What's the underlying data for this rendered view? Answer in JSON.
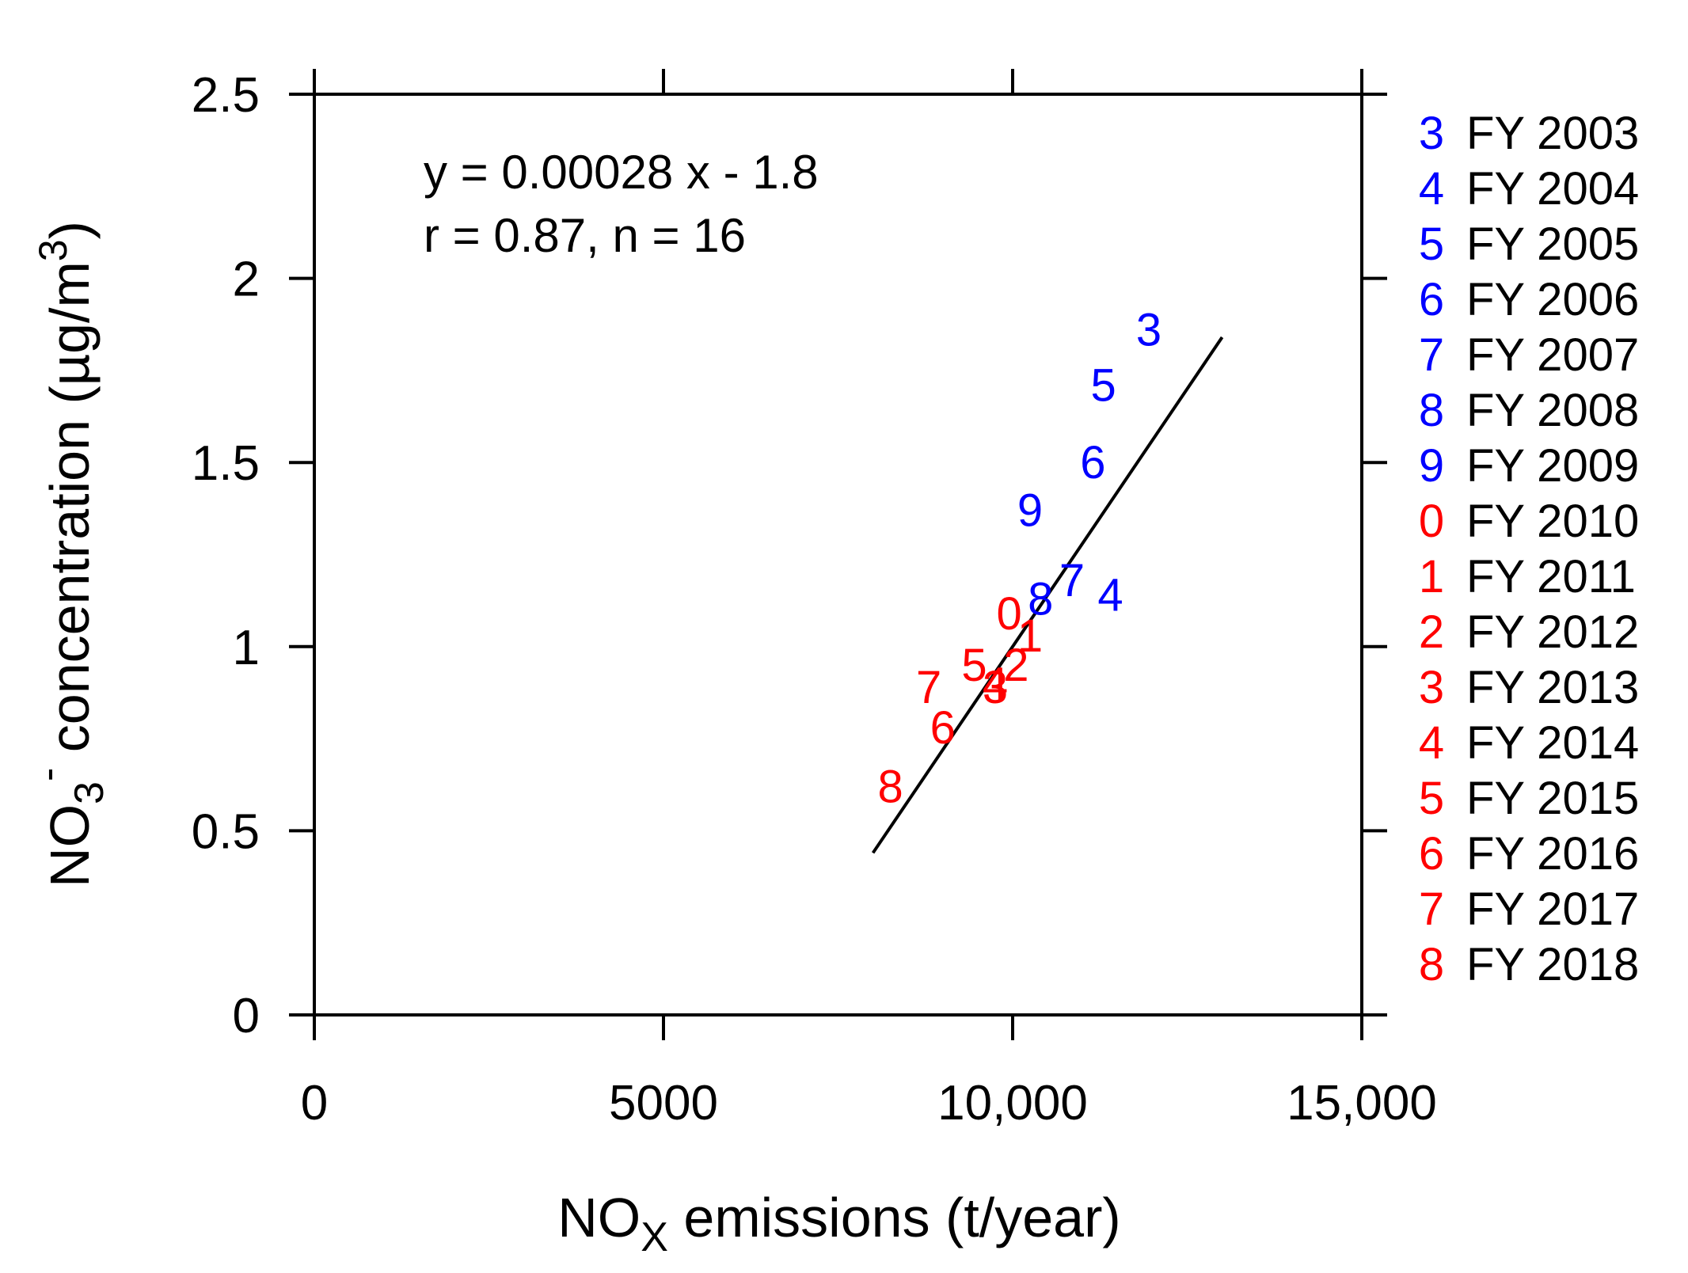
{
  "chart_data": {
    "type": "scatter",
    "xlabel": {
      "main": "NO",
      "sub": "X",
      "rest": " emissions (t/year)"
    },
    "ylabel": {
      "main": "NO",
      "sub": "3",
      "sup": "-",
      "rest": " concentration (µg/m",
      "sup2": "3",
      "end": ")"
    },
    "xlim": [
      0,
      15000
    ],
    "ylim": [
      0,
      2.5
    ],
    "xticks": [
      {
        "value": 0,
        "label": "0"
      },
      {
        "value": 5000,
        "label": "5000"
      },
      {
        "value": 10000,
        "label": "10,000"
      },
      {
        "value": 15000,
        "label": "15,000"
      }
    ],
    "yticks": [
      {
        "value": 0,
        "label": "0"
      },
      {
        "value": 0.5,
        "label": "0.5"
      },
      {
        "value": 1,
        "label": "1"
      },
      {
        "value": 1.5,
        "label": "1.5"
      },
      {
        "value": 2,
        "label": "2"
      },
      {
        "value": 2.5,
        "label": "2.5"
      }
    ],
    "annotations": [
      "y = 0.00028 x - 1.8",
      "r = 0.87, n = 16"
    ],
    "regression": {
      "slope": 0.00028,
      "intercept": -1.8,
      "x_start": 8000,
      "x_end": 13000
    },
    "colors": {
      "early": "#0000ff",
      "late": "#ff0000"
    },
    "points": [
      {
        "code": "3",
        "year": "FY 2003",
        "x": 11950,
        "y": 1.86,
        "color": "#0000ff"
      },
      {
        "code": "4",
        "year": "FY 2004",
        "x": 11400,
        "y": 1.14,
        "color": "#0000ff"
      },
      {
        "code": "5",
        "year": "FY 2005",
        "x": 11300,
        "y": 1.71,
        "color": "#0000ff"
      },
      {
        "code": "6",
        "year": "FY 2006",
        "x": 11150,
        "y": 1.5,
        "color": "#0000ff"
      },
      {
        "code": "7",
        "year": "FY 2007",
        "x": 10850,
        "y": 1.18,
        "color": "#0000ff"
      },
      {
        "code": "8",
        "year": "FY 2008",
        "x": 10400,
        "y": 1.13,
        "color": "#0000ff"
      },
      {
        "code": "9",
        "year": "FY 2009",
        "x": 10250,
        "y": 1.37,
        "color": "#0000ff"
      },
      {
        "code": "0",
        "year": "FY 2010",
        "x": 9950,
        "y": 1.09,
        "color": "#ff0000"
      },
      {
        "code": "1",
        "year": "FY 2011",
        "x": 10250,
        "y": 1.03,
        "color": "#ff0000"
      },
      {
        "code": "2",
        "year": "FY 2012",
        "x": 10050,
        "y": 0.95,
        "color": "#ff0000"
      },
      {
        "code": "3",
        "year": "FY 2013",
        "x": 9750,
        "y": 0.89,
        "color": "#ff0000"
      },
      {
        "code": "4",
        "year": "FY 2014",
        "x": 9750,
        "y": 0.9,
        "color": "#ff0000"
      },
      {
        "code": "5",
        "year": "FY 2015",
        "x": 9450,
        "y": 0.95,
        "color": "#ff0000"
      },
      {
        "code": "6",
        "year": "FY 2016",
        "x": 9000,
        "y": 0.78,
        "color": "#ff0000"
      },
      {
        "code": "7",
        "year": "FY 2017",
        "x": 8800,
        "y": 0.89,
        "color": "#ff0000"
      },
      {
        "code": "8",
        "year": "FY 2018",
        "x": 8250,
        "y": 0.62,
        "color": "#ff0000"
      }
    ]
  }
}
